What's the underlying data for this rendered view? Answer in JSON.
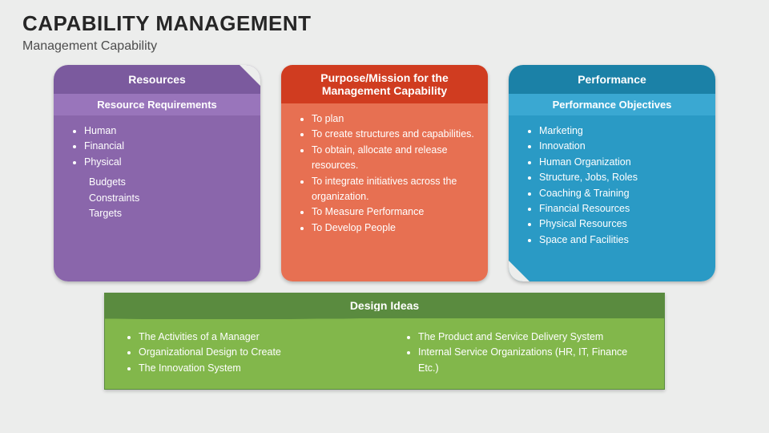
{
  "title": "CAPABILITY MANAGEMENT",
  "subtitle": "Management Capability",
  "colors": {
    "background": "#ecedec",
    "title": "#262626",
    "subtitle": "#4d4d4d"
  },
  "cards": {
    "resources": {
      "header": "Resources",
      "subheader": "Resource Requirements",
      "bullets": [
        "Human",
        "Financial",
        "Physical"
      ],
      "sublist": [
        "Budgets",
        "Constraints",
        "Targets"
      ],
      "header_bg": "#7b5a9e",
      "sub_bg": "#9975bb",
      "body_bg": "#8a66ab"
    },
    "mission": {
      "header": "Purpose/Mission for the Management Capability",
      "bullets": [
        "To plan",
        "To create structures and capabilities.",
        "To obtain, allocate and release resources.",
        "To integrate initiatives across the organization.",
        "To Measure Performance",
        "To Develop People"
      ],
      "header_bg": "#d03c20",
      "body_bg": "#e77052"
    },
    "performance": {
      "header": "Performance",
      "subheader": "Performance Objectives",
      "bullets": [
        "Marketing",
        "Innovation",
        "Human Organization",
        "Structure, Jobs, Roles",
        "Coaching & Training",
        "Financial Resources",
        "Physical Resources",
        "Space and Facilities"
      ],
      "header_bg": "#1b81a7",
      "sub_bg": "#3aa8d2",
      "body_bg": "#2a9ac5"
    }
  },
  "design": {
    "header": "Design Ideas",
    "col1": [
      "The Activities of a Manager",
      "Organizational Design to Create",
      "The Innovation System"
    ],
    "col2": [
      "The Product and Service Delivery System",
      "Internal Service Organizations (HR, IT, Finance Etc.)"
    ],
    "header_bg": "#5a8b3f",
    "body_bg": "#82b74b"
  },
  "fonts": {
    "title_size": 26,
    "subtitle_size": 16,
    "card_header_size": 14,
    "body_text_size": 12.5
  }
}
